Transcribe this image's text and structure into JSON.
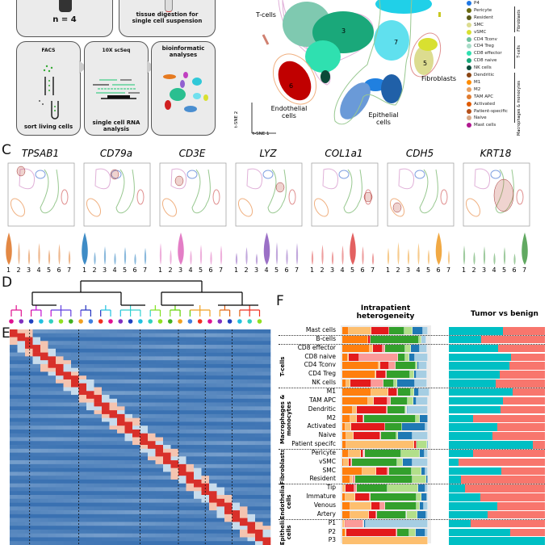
{
  "panelA": {
    "box_n": "n = 4",
    "box_digestion": "tissue digestion for single cell suspension",
    "box_facs_title": "FACS",
    "box_facs_caption": "sort living cells",
    "box_seq_title": "10X scSeq",
    "box_seq_caption": "single cell RNA analysis",
    "box_bio_title": "bioinformatic analyses"
  },
  "panelB": {
    "labels": {
      "tcells": "T-cells",
      "endothelial": "Endothelial cells",
      "epithelial": "Epithelial cells",
      "fibroblasts": "Fibroblasts"
    },
    "cluster_numbers": [
      "3",
      "6",
      "7",
      "5"
    ],
    "axis_x": "t-SNE 1",
    "axis_y": "t-SNE 2"
  },
  "legend": {
    "items": [
      {
        "label": "P4",
        "color": "#1f77e4"
      },
      {
        "label": "Pericyte",
        "color": "#6b6b10"
      },
      {
        "label": "Resident",
        "color": "#5a5a1a"
      },
      {
        "label": "SMC",
        "color": "#dcdc90"
      },
      {
        "label": "vSMC",
        "color": "#d8e030"
      },
      {
        "label": "CD4 Tconv",
        "color": "#6fc1a0"
      },
      {
        "label": "CD4 Treg",
        "color": "#a8dcc8"
      },
      {
        "label": "CD8 effector",
        "color": "#2fe0b0"
      },
      {
        "label": "CD8 naive",
        "color": "#1aa87a"
      },
      {
        "label": "NK cells",
        "color": "#0b4a38"
      },
      {
        "label": "Dendritic",
        "color": "#8b4513"
      },
      {
        "label": "M1",
        "color": "#ff8c00"
      },
      {
        "label": "M2",
        "color": "#e8a060"
      },
      {
        "label": "TAM APC",
        "color": "#e07b30"
      },
      {
        "label": "Activated",
        "color": "#e05a00"
      },
      {
        "label": "Patient-specific",
        "color": "#b5501a"
      },
      {
        "label": "Naive",
        "color": "#d8a888"
      },
      {
        "label": "Mast cells",
        "color": "#b01890"
      }
    ],
    "groups": [
      "Fibroblasts",
      "T-cells",
      "Macrophages & monocytes"
    ]
  },
  "panelC": {
    "letter": "C",
    "genes": [
      "TPSAB1",
      "CD79a",
      "CD3E",
      "LYZ",
      "COL1a1",
      "CDH5",
      "KRT18"
    ],
    "violin_ticks": [
      "1",
      "2",
      "3",
      "4",
      "5",
      "6",
      "7"
    ],
    "violin_colors": [
      "#e07b30",
      "#2a7fc0",
      "#e070c0",
      "#9060c0",
      "#e05050",
      "#f0a030",
      "#50a050"
    ],
    "highlight_cluster": [
      1,
      1,
      3,
      4,
      5,
      6,
      7
    ]
  },
  "panelD": {
    "letter": "D"
  },
  "panelE": {
    "letter": "E"
  },
  "panelF": {
    "letter": "F",
    "title_left": "Intrapatient heterogeneity",
    "title_right": "Tumor vs benign",
    "patient_colors": [
      "#ff7f0e",
      "#fdbf6f",
      "#e31a1c",
      "#fb9a99",
      "#33a02c",
      "#b2df8a",
      "#1f78b4",
      "#a6cee3"
    ],
    "tumor_color": "#00bfc4",
    "benign_color": "#f8766d",
    "groups": [
      {
        "label": "T-cells",
        "rows": [
          2,
          6
        ]
      },
      {
        "label": "Macrophages & monocytes",
        "rows": [
          7,
          13
        ]
      },
      {
        "label": "Fibroblasts",
        "rows": [
          14,
          17
        ]
      },
      {
        "label": "Endothelial cells",
        "rows": [
          18,
          21
        ]
      },
      {
        "label": "Epithelial cells",
        "rows": [
          22,
          24
        ]
      }
    ],
    "rows": [
      {
        "label": "Mast cells",
        "patients": [
          0.08,
          0.26,
          0.21,
          0,
          0.18,
          0.09,
          0.12,
          0.06
        ],
        "tumor_fraction": 0.56
      },
      {
        "label": "B-cells",
        "patients": [
          0.3,
          0,
          0.03,
          0,
          0.57,
          0.02,
          0,
          0.06
        ],
        "tumor_fraction": 0.34
      },
      {
        "label": "CD8 effector",
        "patients": [
          0.32,
          0.04,
          0.11,
          0.03,
          0.24,
          0.06,
          0.11,
          0.08
        ],
        "tumor_fraction": 0.51
      },
      {
        "label": "CD8 naive",
        "patients": [
          0.07,
          0.01,
          0.12,
          0.45,
          0.09,
          0.04,
          0.07,
          0.15
        ],
        "tumor_fraction": 0.65
      },
      {
        "label": "CD4 Tconv",
        "patients": [
          0.42,
          0.02,
          0.11,
          0.07,
          0.24,
          0.02,
          0.02,
          0.09
        ],
        "tumor_fraction": 0.63
      },
      {
        "label": "CD4 Treg",
        "patients": [
          0.39,
          0.01,
          0.11,
          0.01,
          0.27,
          0.05,
          0.03,
          0.12
        ],
        "tumor_fraction": 0.53
      },
      {
        "label": "NK cells",
        "patients": [
          0.05,
          0.04,
          0.25,
          0.14,
          0.12,
          0.04,
          0.21,
          0.14
        ],
        "tumor_fraction": 0.49
      },
      {
        "label": "M1",
        "patients": [
          0.34,
          0.2,
          0.1,
          0.01,
          0.15,
          0.04,
          0.06,
          0.12
        ],
        "tumor_fraction": 0.66
      },
      {
        "label": "TAM APC",
        "patients": [
          0.3,
          0.07,
          0.16,
          0.04,
          0.19,
          0.07,
          0.04,
          0.13
        ],
        "tumor_fraction": 0.56
      },
      {
        "label": "Dendritic",
        "patients": [
          0.12,
          0.05,
          0.35,
          0.01,
          0.21,
          0.01,
          0.01,
          0.24
        ],
        "tumor_fraction": 0.54
      },
      {
        "label": "M2",
        "patients": [
          0.09,
          0.08,
          0.08,
          0,
          0.61,
          0.05,
          0.09,
          0
        ],
        "tumor_fraction": 0.25
      },
      {
        "label": "Activated",
        "patients": [
          0.04,
          0.06,
          0.4,
          0,
          0.2,
          0,
          0.27,
          0.03
        ],
        "tumor_fraction": 0.5
      },
      {
        "label": "Naive",
        "patients": [
          0.05,
          0.08,
          0.31,
          0.01,
          0.18,
          0.02,
          0.17,
          0.18
        ],
        "tumor_fraction": 0.45
      },
      {
        "label": "Patient specifc",
        "patients": [
          0.05,
          0.79,
          0.03,
          0,
          0.01,
          0.11,
          0.01,
          0
        ],
        "tumor_fraction": 0.87
      },
      {
        "label": "Pericyte",
        "patients": [
          0.08,
          0.14,
          0.03,
          0.01,
          0.43,
          0.22,
          0.05,
          0.04
        ],
        "tumor_fraction": 0.25
      },
      {
        "label": "vSMC",
        "patients": [
          0.02,
          0.06,
          0.02,
          0.01,
          0.53,
          0.07,
          0.11,
          0.18
        ],
        "tumor_fraction": 0.1
      },
      {
        "label": "SMC",
        "patients": [
          0.24,
          0.16,
          0.13,
          0.02,
          0.26,
          0.11,
          0.05,
          0.03
        ],
        "tumor_fraction": 0.55
      },
      {
        "label": "Resident",
        "patients": [
          0.09,
          0.03,
          0.01,
          0.02,
          0.67,
          0.16,
          0.02,
          0
        ],
        "tumor_fraction": 0.13
      },
      {
        "label": "Tip",
        "patients": [
          0.01,
          0.03,
          0.1,
          0.03,
          0.36,
          0.36,
          0.08,
          0.03
        ],
        "tumor_fraction": 0.17
      },
      {
        "label": "Immature",
        "patients": [
          0.04,
          0.11,
          0.17,
          0.01,
          0.54,
          0.05,
          0.07,
          0.01
        ],
        "tumor_fraction": 0.33
      },
      {
        "label": "Venous",
        "patients": [
          0.09,
          0.25,
          0.1,
          0.06,
          0.37,
          0.04,
          0.04,
          0.05
        ],
        "tumor_fraction": 0.5
      },
      {
        "label": "Artery",
        "patients": [
          0.09,
          0.22,
          0.09,
          0.01,
          0.34,
          0.13,
          0.1,
          0.02
        ],
        "tumor_fraction": 0.4
      },
      {
        "label": "P1",
        "patients": [
          0.01,
          0.02,
          0.01,
          0.21,
          0,
          0,
          0.02,
          0.73
        ],
        "tumor_fraction": 0.23
      },
      {
        "label": "P2",
        "patients": [
          0.04,
          0.01,
          0.58,
          0.01,
          0.14,
          0.08,
          0.11,
          0.03
        ],
        "tumor_fraction": 0.64
      },
      {
        "label": "P3",
        "patients": [
          0,
          1,
          0,
          0,
          0,
          0,
          0,
          0
        ],
        "tumor_fraction": 1.0
      }
    ]
  }
}
